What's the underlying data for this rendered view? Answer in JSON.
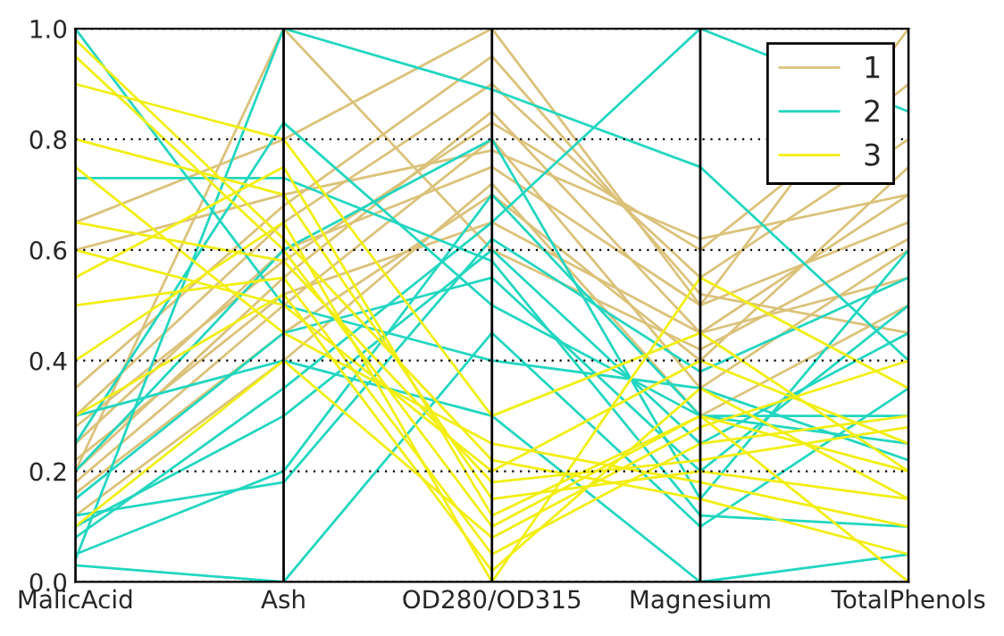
{
  "chart_data": {
    "type": "line",
    "categories": [
      "MalicAcid",
      "Ash",
      "OD280/OD315",
      "Magnesium",
      "TotalPhenols"
    ],
    "ylim": [
      0,
      1
    ],
    "yticks": [
      {
        "value": 0,
        "label": "0.0"
      },
      0.2,
      0.4,
      0.6,
      0.8,
      {
        "value": 1,
        "label": "1.0"
      }
    ],
    "grid": true,
    "legend": "top right",
    "marker": "none",
    "line_style": "solid",
    "series": [
      {
        "name": "1",
        "color": "#dbc27a",
        "values": [
          0.2,
          0.55,
          0.85,
          0.45,
          0.7
        ]
      },
      {
        "color": "#dbc27a",
        "values": [
          0.25,
          0.6,
          0.75,
          0.5,
          0.65
        ]
      },
      {
        "color": "#dbc27a",
        "values": [
          0.18,
          0.5,
          0.8,
          0.35,
          0.6
        ]
      },
      {
        "color": "#dbc27a",
        "values": [
          0.16,
          0.45,
          0.7,
          0.4,
          0.75
        ]
      },
      {
        "color": "#dbc27a",
        "values": [
          0.3,
          0.65,
          0.9,
          0.55,
          0.8
        ]
      },
      {
        "color": "#dbc27a",
        "values": [
          0.22,
          0.52,
          0.65,
          0.45,
          0.55
        ]
      },
      {
        "color": "#dbc27a",
        "values": [
          0.6,
          0.7,
          0.78,
          0.62,
          0.7
        ]
      },
      {
        "color": "#dbc27a",
        "values": [
          0.65,
          0.8,
          1.0,
          0.5,
          1.0
        ]
      },
      {
        "color": "#dbc27a",
        "values": [
          0.12,
          0.4,
          0.72,
          0.3,
          0.5
        ]
      },
      {
        "color": "#dbc27a",
        "values": [
          0.28,
          0.58,
          0.83,
          0.6,
          0.9
        ]
      },
      {
        "color": "#dbc27a",
        "values": [
          0.2,
          1.0,
          0.6,
          0.42,
          0.62
        ]
      },
      {
        "color": "#dbc27a",
        "values": [
          0.35,
          0.68,
          0.95,
          0.52,
          0.45
        ]
      },
      {
        "name": "2",
        "color": "#22d6c0",
        "values": [
          0.1,
          0.3,
          0.6,
          0.25,
          0.45
        ]
      },
      {
        "color": "#22d6c0",
        "values": [
          0.05,
          0.2,
          0.7,
          0.3,
          0.3
        ]
      },
      {
        "color": "#22d6c0",
        "values": [
          0.15,
          0.45,
          0.55,
          0.2,
          0.5
        ]
      },
      {
        "color": "#22d6c0",
        "values": [
          1.0,
          0.5,
          0.4,
          0.35,
          0.22
        ]
      },
      {
        "color": "#22d6c0",
        "values": [
          0.03,
          0.0,
          0.45,
          0.1,
          0.35
        ]
      },
      {
        "color": "#22d6c0",
        "values": [
          0.2,
          0.6,
          0.8,
          0.15,
          0.6
        ]
      },
      {
        "color": "#22d6c0",
        "values": [
          0.08,
          0.35,
          0.65,
          1.0,
          0.85
        ]
      },
      {
        "color": "#22d6c0",
        "values": [
          0.25,
          0.83,
          0.5,
          0.3,
          0.25
        ]
      },
      {
        "color": "#22d6c0",
        "values": [
          0.73,
          0.73,
          0.58,
          0.12,
          0.1
        ]
      },
      {
        "color": "#22d6c0",
        "values": [
          0.12,
          0.18,
          0.62,
          0.38,
          0.55
        ]
      },
      {
        "color": "#22d6c0",
        "values": [
          0.04,
          1.0,
          0.89,
          0.75,
          0.4
        ]
      },
      {
        "color": "#22d6c0",
        "values": [
          0.3,
          0.4,
          0.3,
          0.0,
          0.05
        ]
      },
      {
        "name": "3",
        "color": "#f2ee12",
        "values": [
          0.95,
          0.6,
          0.1,
          0.3,
          0.2
        ]
      },
      {
        "color": "#f2ee12",
        "values": [
          0.5,
          0.55,
          0.05,
          0.25,
          0.3
        ]
      },
      {
        "color": "#f2ee12",
        "values": [
          0.8,
          0.7,
          0.15,
          0.2,
          0.15
        ]
      },
      {
        "color": "#f2ee12",
        "values": [
          0.6,
          0.5,
          0.2,
          0.4,
          0.25
        ]
      },
      {
        "color": "#f2ee12",
        "values": [
          0.4,
          0.65,
          0.0,
          0.55,
          0.35
        ]
      },
      {
        "color": "#f2ee12",
        "values": [
          0.75,
          0.45,
          0.25,
          0.18,
          0.1
        ]
      },
      {
        "color": "#f2ee12",
        "values": [
          0.55,
          0.75,
          0.12,
          0.3,
          0.0
        ]
      },
      {
        "color": "#f2ee12",
        "values": [
          0.1,
          0.4,
          0.08,
          0.28,
          0.4
        ]
      },
      {
        "color": "#f2ee12",
        "values": [
          0.9,
          0.8,
          0.3,
          0.45,
          0.2
        ]
      },
      {
        "color": "#f2ee12",
        "values": [
          0.65,
          0.58,
          0.18,
          0.22,
          0.28
        ]
      },
      {
        "color": "#f2ee12",
        "values": [
          0.3,
          0.52,
          0.02,
          0.35,
          0.15
        ]
      },
      {
        "color": "#f2ee12",
        "values": [
          0.98,
          0.62,
          0.22,
          0.15,
          0.05
        ]
      }
    ]
  }
}
